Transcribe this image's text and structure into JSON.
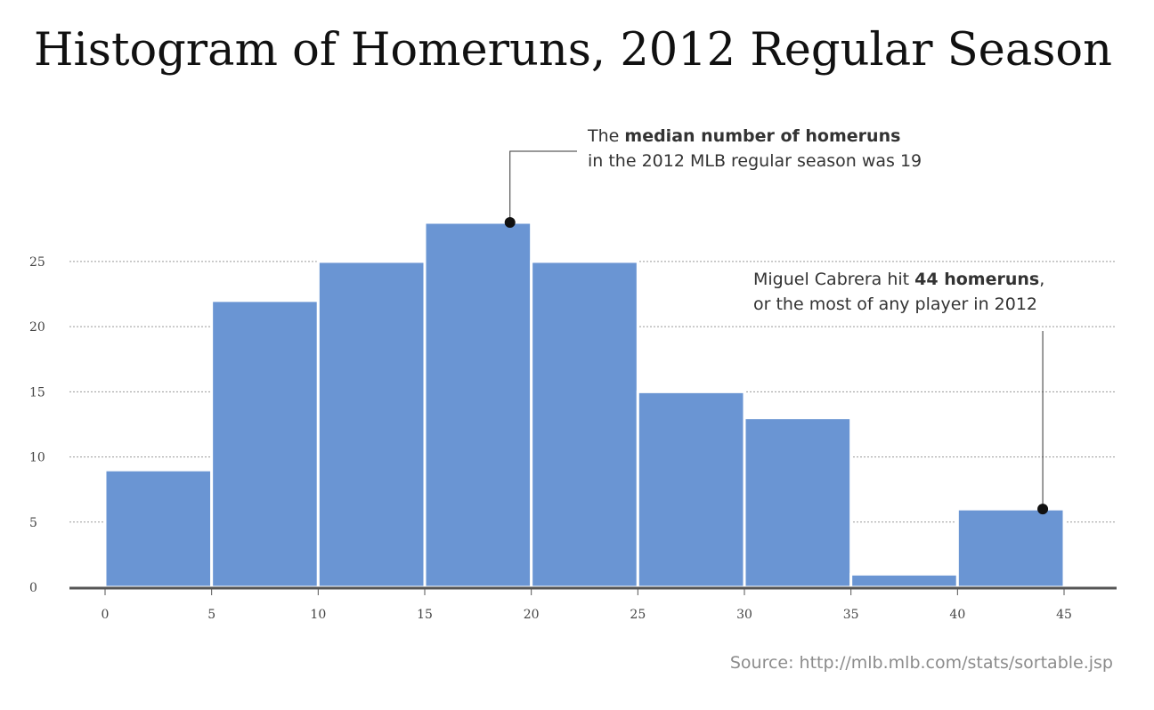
{
  "chart_data": {
    "type": "bar",
    "title": "Histogram of Homeruns, 2012 Regular Season",
    "bins": [
      {
        "start": 0,
        "end": 5,
        "count": 9
      },
      {
        "start": 5,
        "end": 10,
        "count": 22
      },
      {
        "start": 10,
        "end": 15,
        "count": 25
      },
      {
        "start": 15,
        "end": 20,
        "count": 28
      },
      {
        "start": 20,
        "end": 25,
        "count": 25
      },
      {
        "start": 25,
        "end": 30,
        "count": 15
      },
      {
        "start": 30,
        "end": 35,
        "count": 13
      },
      {
        "start": 35,
        "end": 40,
        "count": 1
      },
      {
        "start": 40,
        "end": 45,
        "count": 6
      }
    ],
    "x_ticks": [
      "0",
      "5",
      "10",
      "15",
      "20",
      "25",
      "30",
      "35",
      "40",
      "45"
    ],
    "y_ticks": [
      "0",
      "5",
      "10",
      "15",
      "20",
      "25"
    ],
    "xlabel": "",
    "ylabel": "",
    "xlim": [
      0,
      45
    ],
    "ylim": [
      0,
      28
    ],
    "grid": true,
    "bar_color": "#6a95d3",
    "annotations": [
      {
        "x": 19,
        "y": 28,
        "line1_before": "The ",
        "line1_bold": "median number of homeruns",
        "line1_after": "",
        "line2": "in the 2012 MLB regular season was 19"
      },
      {
        "x": 44,
        "y": 6,
        "line1_before": "Miguel Cabrera hit ",
        "line1_bold": "44 homeruns",
        "line1_after": ",",
        "line2": "or the most of any player in 2012"
      }
    ]
  },
  "source": "Source: http://mlb.mlb.com/stats/sortable.jsp"
}
